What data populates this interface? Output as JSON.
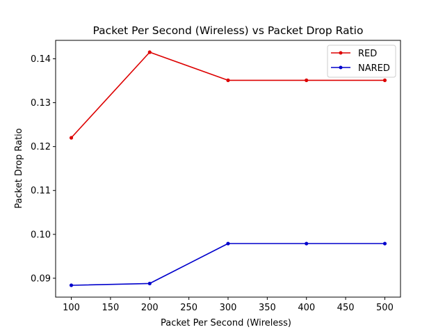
{
  "chart_data": {
    "type": "line",
    "title": "Packet Per Second (Wireless)  vs Packet Drop Ratio",
    "xlabel": "Packet Per Second (Wireless)",
    "ylabel": "Packet Drop Ratio",
    "xlim": [
      80,
      520
    ],
    "ylim": [
      0.0857,
      0.1442
    ],
    "x_ticks": [
      100,
      150,
      200,
      250,
      300,
      350,
      400,
      450,
      500
    ],
    "x_tick_labels": [
      "100",
      "150",
      "200",
      "250",
      "300",
      "350",
      "400",
      "450",
      "500"
    ],
    "y_ticks": [
      0.09,
      0.1,
      0.11,
      0.12,
      0.13,
      0.14
    ],
    "y_tick_labels": [
      "0.09",
      "0.10",
      "0.11",
      "0.12",
      "0.13",
      "0.14"
    ],
    "grid": false,
    "legend_position": "top-right",
    "x": [
      100,
      200,
      300,
      400,
      500
    ],
    "series": [
      {
        "name": "RED",
        "color": "#dd0000",
        "values": [
          0.122,
          0.1415,
          0.1351,
          0.1351,
          0.1351
        ]
      },
      {
        "name": "NARED",
        "color": "#0000cc",
        "values": [
          0.0884,
          0.0888,
          0.0979,
          0.0979,
          0.0979
        ]
      }
    ]
  }
}
